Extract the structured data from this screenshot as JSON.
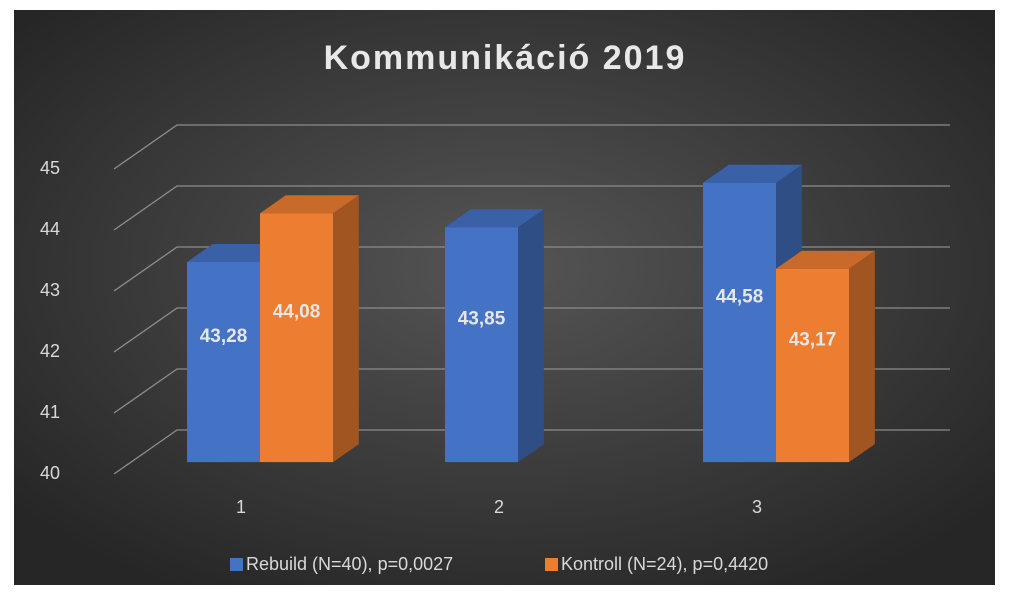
{
  "chart_data": {
    "type": "bar3d",
    "title": "Kommunikáció 2019",
    "categories": [
      "1",
      "2",
      "3"
    ],
    "series": [
      {
        "name": "Rebuild (N=40), p=0,0027",
        "color": "#4472c4",
        "values": [
          43.28,
          43.85,
          44.58
        ],
        "value_labels": [
          "43,28",
          "43,85",
          "44,58"
        ]
      },
      {
        "name": "Kontroll (N=24), p=0,4420",
        "color": "#ed7d31",
        "values": [
          44.08,
          null,
          43.17
        ],
        "value_labels": [
          "44,08",
          null,
          "43,17"
        ]
      }
    ],
    "ylim": [
      40,
      45
    ],
    "yticks": [
      40,
      41,
      42,
      43,
      44,
      45
    ],
    "grid": true,
    "legend": "bottom"
  }
}
